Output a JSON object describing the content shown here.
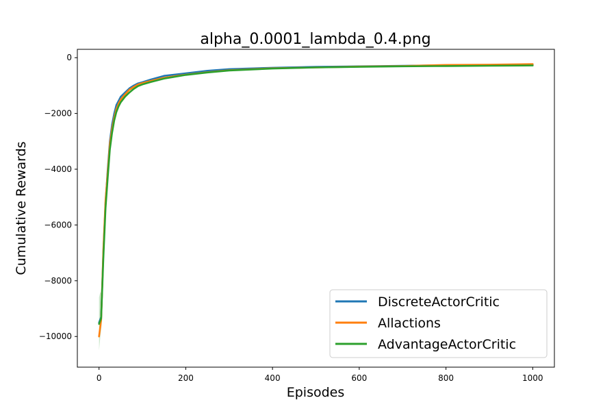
{
  "chart_data": {
    "type": "line",
    "title": "alpha_0.0001_lambda_0.4.png",
    "xlabel": "Episodes",
    "ylabel": "Cumulative Rewards",
    "xlim": [
      -50,
      1050
    ],
    "ylim": [
      -11100,
      300
    ],
    "xticks": [
      0,
      200,
      400,
      600,
      800,
      1000
    ],
    "yticks": [
      0,
      -2000,
      -4000,
      -6000,
      -8000,
      -10000
    ],
    "xtick_labels": [
      "0",
      "200",
      "400",
      "600",
      "800",
      "1000"
    ],
    "ytick_labels": [
      "0",
      "−2000",
      "−4000",
      "−6000",
      "−8000",
      "−10000"
    ],
    "grid": false,
    "legend_position": "lower-right",
    "series": [
      {
        "name": "DiscreteActorCritic",
        "color": "#1f77b4",
        "x": [
          0,
          5,
          10,
          15,
          20,
          25,
          30,
          35,
          40,
          45,
          50,
          60,
          70,
          80,
          90,
          100,
          120,
          150,
          200,
          250,
          300,
          400,
          500,
          600,
          700,
          800,
          900,
          1000
        ],
        "y": [
          -9500,
          -9300,
          -7000,
          -5200,
          -4000,
          -3000,
          -2400,
          -2000,
          -1700,
          -1550,
          -1400,
          -1250,
          -1100,
          -1000,
          -920,
          -880,
          -780,
          -650,
          -560,
          -470,
          -410,
          -360,
          -330,
          -310,
          -290,
          -270,
          -260,
          -250
        ]
      },
      {
        "name": "Allactions",
        "color": "#ff7f0e",
        "x": [
          0,
          5,
          10,
          15,
          20,
          25,
          30,
          35,
          40,
          45,
          50,
          60,
          70,
          80,
          90,
          100,
          120,
          150,
          200,
          250,
          300,
          400,
          500,
          600,
          700,
          800,
          900,
          1000
        ],
        "y": [
          -10000,
          -9400,
          -6900,
          -5100,
          -4100,
          -3100,
          -2550,
          -2150,
          -1850,
          -1650,
          -1500,
          -1320,
          -1150,
          -1050,
          -960,
          -910,
          -830,
          -720,
          -610,
          -520,
          -450,
          -380,
          -350,
          -320,
          -300,
          -260,
          -250,
          -230
        ]
      },
      {
        "name": "AdvantageActorCritic",
        "color": "#2ca02c",
        "x": [
          0,
          5,
          10,
          15,
          20,
          25,
          30,
          35,
          40,
          45,
          50,
          60,
          70,
          80,
          90,
          100,
          120,
          150,
          200,
          250,
          300,
          400,
          500,
          600,
          700,
          800,
          900,
          1000
        ],
        "y": [
          -9550,
          -9350,
          -7200,
          -5400,
          -4300,
          -3300,
          -2700,
          -2250,
          -1950,
          -1750,
          -1600,
          -1400,
          -1250,
          -1120,
          -1020,
          -960,
          -870,
          -750,
          -620,
          -530,
          -460,
          -390,
          -350,
          -330,
          -310,
          -300,
          -290,
          -280
        ]
      }
    ],
    "band": {
      "color": "#2ca02c",
      "x": [
        0,
        3,
        6,
        10,
        15
      ],
      "upper": [
        -8600,
        -8400,
        -8500,
        -7000,
        -5200
      ],
      "lower": [
        -10500,
        -10000,
        -9600,
        -7400,
        -5600
      ]
    }
  }
}
